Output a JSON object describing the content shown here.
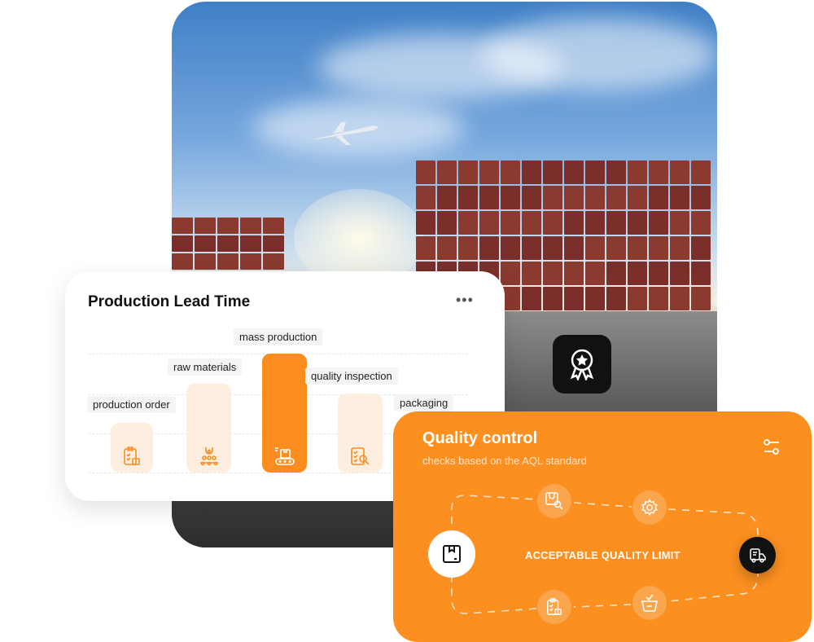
{
  "lead_time": {
    "title": "Production Lead Time",
    "menu_icon": "more-horizontal-icon",
    "more_label": "•••",
    "stages": [
      {
        "label": "production order",
        "icon": "clipboard-box-icon",
        "active": false
      },
      {
        "label": "raw materials",
        "icon": "robot-arm-conveyor-icon",
        "active": false
      },
      {
        "label": "mass production",
        "icon": "conveyor-box-icon",
        "active": true
      },
      {
        "label": "quality inspection",
        "icon": "checklist-search-icon",
        "active": false
      },
      {
        "label": "packaging",
        "icon": "package-icon",
        "active": false
      }
    ]
  },
  "quality_control": {
    "title": "Quality control",
    "subtitle": "checks based on the AQL standard",
    "center_label": "ACCEPTABLE QUALITY LIMIT",
    "settings_icon": "sliders-icon",
    "nodes": [
      "package-icon",
      "box-search-icon",
      "gear-icon",
      "delivery-truck-icon",
      "clipboard-box-icon",
      "basket-check-icon"
    ]
  },
  "badge_icon": "award-ribbon-icon",
  "colors": {
    "accent": "#fb8f20",
    "accent_light": "#fdeedf",
    "dark": "#111111"
  }
}
